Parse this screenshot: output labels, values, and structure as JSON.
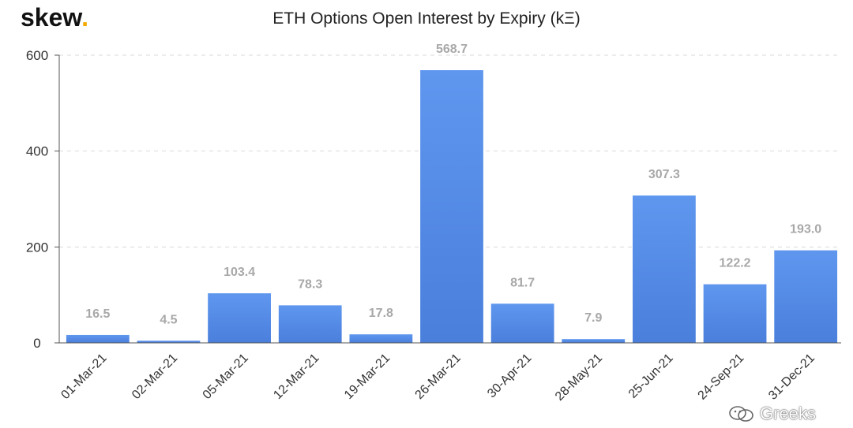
{
  "header": {
    "logo_text": "skew",
    "logo_dot": ".",
    "watermark": "Greeks"
  },
  "colors": {
    "bar_top": "#5f97ef",
    "bar_bottom": "#4a7fdc",
    "label": "#a8a8a8",
    "grid": "#d9d9d9",
    "logo_dot": "#f2a900"
  },
  "chart_data": {
    "type": "bar",
    "title": "ETH Options Open Interest by Expiry (kΞ)",
    "xlabel": "",
    "ylabel": "",
    "categories": [
      "01-Mar-21",
      "02-Mar-21",
      "05-Mar-21",
      "12-Mar-21",
      "19-Mar-21",
      "26-Mar-21",
      "30-Apr-21",
      "28-May-21",
      "25-Jun-21",
      "24-Sep-21",
      "31-Dec-21"
    ],
    "values": [
      16.5,
      4.5,
      103.4,
      78.3,
      17.8,
      568.7,
      81.7,
      7.9,
      307.3,
      122.2,
      193.0
    ],
    "value_labels": [
      "16.5",
      "4.5",
      "103.4",
      "78.3",
      "17.8",
      "568.7",
      "81.7",
      "7.9",
      "307.3",
      "122.2",
      "193.0"
    ],
    "ylim": [
      0,
      600
    ],
    "yticks": [
      "0",
      "200",
      "400",
      "600"
    ],
    "grid": true,
    "legend": "none"
  }
}
